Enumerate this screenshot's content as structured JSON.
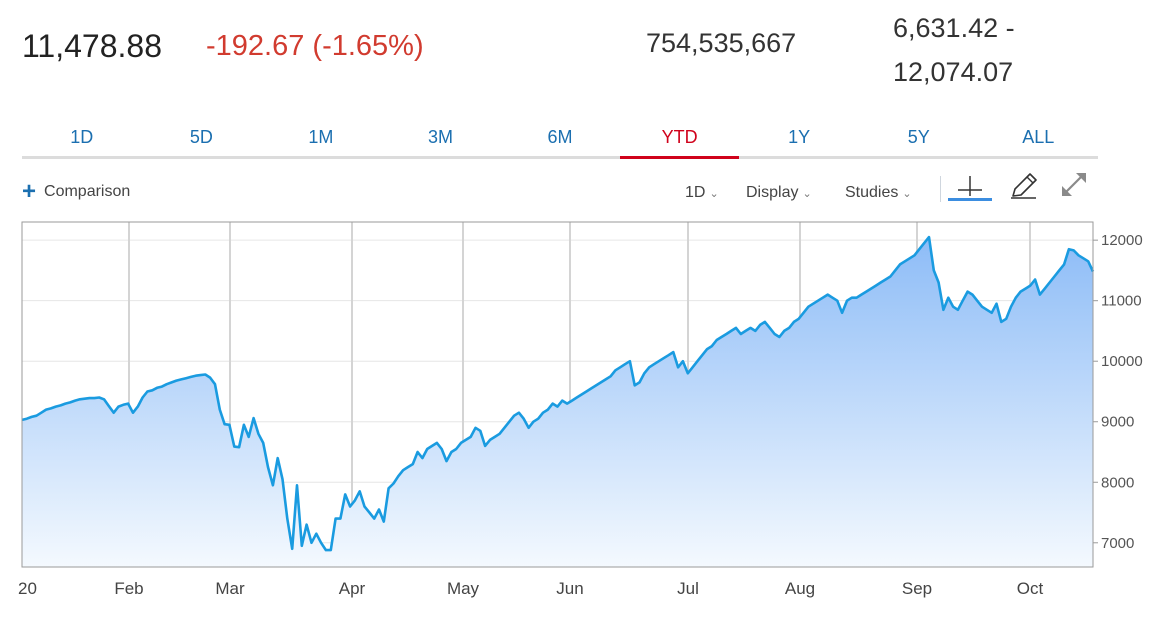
{
  "quote": {
    "last": "11,478.88",
    "change": "-192.67 (-1.65%)",
    "volume": "754,535,667",
    "range_low": "6,631.42 -",
    "range_high": "12,074.07"
  },
  "tabs": [
    "1D",
    "5D",
    "1M",
    "3M",
    "6M",
    "YTD",
    "1Y",
    "5Y",
    "ALL"
  ],
  "active_tab": "YTD",
  "toolbar": {
    "comparison_label": "Comparison",
    "interval_label": "1D",
    "display_label": "Display",
    "studies_label": "Studies"
  },
  "icons": {
    "add": "plus-icon",
    "crosshair": "crosshair-icon",
    "draw": "pencil-icon",
    "expand": "expand-icon",
    "dropdown": "chevron-down-icon"
  },
  "colors": {
    "line": "#1a9be0",
    "area_top": "#8dbcf7",
    "area_bottom": "#f4f9fe",
    "negative": "#d13b2f",
    "active_tab": "#d0021b",
    "tab": "#1b6fb0"
  },
  "chart_data": {
    "type": "area",
    "title": "",
    "xlabel": "",
    "ylabel": "",
    "x_tick_labels": [
      "20",
      "Feb",
      "Mar",
      "Apr",
      "May",
      "Jun",
      "Jul",
      "Aug",
      "Sep",
      "Oct"
    ],
    "y_ticks": [
      7000,
      8000,
      9000,
      10000,
      11000,
      12000
    ],
    "ylim": [
      6600,
      12300
    ],
    "grid": true,
    "y_axis_position": "right",
    "series": [
      {
        "values": [
          9030,
          9050,
          9080,
          9100,
          9150,
          9200,
          9220,
          9250,
          9270,
          9300,
          9320,
          9350,
          9370,
          9380,
          9390,
          9390,
          9400,
          9370,
          9260,
          9150,
          9250,
          9280,
          9300,
          9150,
          9250,
          9400,
          9500,
          9520,
          9560,
          9580,
          9620,
          9650,
          9680,
          9700,
          9720,
          9740,
          9760,
          9770,
          9780,
          9730,
          9620,
          9200,
          8960,
          8950,
          8590,
          8580,
          8950,
          8750,
          9060,
          8800,
          8650,
          8250,
          7950,
          8400,
          8050,
          7400,
          6900,
          7950,
          6950,
          7300,
          7000,
          7150,
          7000,
          6880,
          6880,
          7400,
          7400,
          7800,
          7600,
          7700,
          7850,
          7600,
          7500,
          7400,
          7550,
          7350,
          7900,
          7980,
          8100,
          8200,
          8250,
          8300,
          8500,
          8400,
          8550,
          8600,
          8650,
          8550,
          8350,
          8500,
          8550,
          8650,
          8700,
          8750,
          8900,
          8850,
          8600,
          8700,
          8750,
          8800,
          8900,
          9000,
          9100,
          9150,
          9050,
          8900,
          9000,
          9050,
          9150,
          9200,
          9300,
          9250,
          9350,
          9300,
          9350,
          9400,
          9450,
          9500,
          9550,
          9600,
          9650,
          9700,
          9750,
          9850,
          9900,
          9950,
          10000,
          9600,
          9650,
          9800,
          9900,
          9950,
          10000,
          10050,
          10100,
          10150,
          9900,
          10000,
          9800,
          9900,
          10000,
          10100,
          10200,
          10250,
          10350,
          10400,
          10450,
          10500,
          10550,
          10450,
          10500,
          10550,
          10500,
          10600,
          10650,
          10550,
          10450,
          10400,
          10500,
          10550,
          10650,
          10700,
          10800,
          10900,
          10950,
          11000,
          11050,
          11100,
          11050,
          11000,
          10800,
          11000,
          11050,
          11050,
          11100,
          11150,
          11200,
          11250,
          11300,
          11350,
          11400,
          11500,
          11600,
          11650,
          11700,
          11750,
          11850,
          11950,
          12050,
          11500,
          11300,
          10850,
          11050,
          10900,
          10850,
          11000,
          11150,
          11100,
          11000,
          10900,
          10850,
          10800,
          10950,
          10650,
          10700,
          10900,
          11050,
          11150,
          11200,
          11250,
          11350,
          11100,
          11200,
          11300,
          11400,
          11500,
          11600,
          11850,
          11830,
          11750,
          11700,
          11650,
          11480
        ]
      }
    ]
  }
}
